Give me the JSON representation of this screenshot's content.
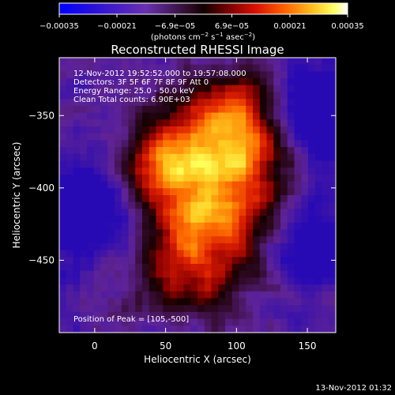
{
  "chart_data": {
    "type": "heatmap",
    "title": "Reconstructed RHESSI Image",
    "xlabel": "Heliocentric X (arcsec)",
    "ylabel": "Heliocentric Y (arcsec)",
    "xlim": [
      -25,
      170
    ],
    "ylim": [
      -500,
      -310
    ],
    "x_ticks": [
      0,
      50,
      100,
      150
    ],
    "y_ticks": [
      -350,
      -400,
      -450
    ],
    "x_tick_labels": [
      "0",
      "50",
      "100",
      "150"
    ],
    "y_tick_labels": [
      "−350",
      "−400",
      "−450"
    ],
    "colorbar": {
      "range": [
        -0.00035,
        0.00035
      ],
      "tick_values": [
        -0.00035,
        -0.00021,
        -6.9e-05,
        6.9e-05,
        0.00021,
        0.00035
      ],
      "tick_labels": [
        "−0.00035",
        "−0.00021",
        "−6.9e−05",
        "6.9e−05",
        "0.00021",
        "0.00035"
      ],
      "units_prefix": "(photons cm",
      "units_sup1": "−2",
      "units_mid1": " s",
      "units_sup2": "−1",
      "units_mid2": " asec",
      "units_sup3": "−2",
      "units_suffix": ")"
    },
    "annotations": [
      "12-Nov-2012 19:52:52.000 to 19:57:08.000",
      "Detectors: 3F 5F 6F 7F 8F 9F  Att 0",
      "Energy Range: 25.0 - 50.0 keV",
      "Clean     Total counts: 6.90E+03"
    ],
    "peak_label": "Position of Peak = [105,-500]",
    "peak": {
      "x": 105,
      "y": -500
    },
    "footer_date": "13-Nov-2012 01:32",
    "colors": {
      "background": "#000000",
      "text": "#ffffff",
      "negative_low": "#0000ff",
      "negative_mid": "#5a1a8c",
      "zero": "#200000",
      "positive_mid": "#e02000",
      "positive_high": "#ffff40",
      "positive_max": "#ffffff"
    }
  }
}
